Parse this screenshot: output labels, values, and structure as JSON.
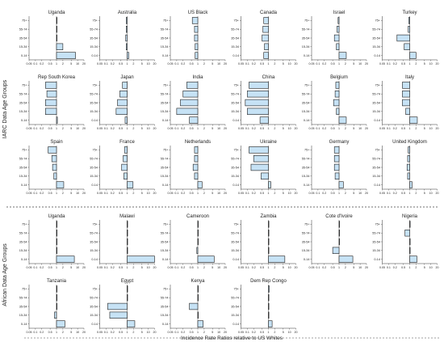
{
  "figure": {
    "group_labels": [
      "IARC Data Age Groups",
      "African Data Age Groups"
    ],
    "x_axis_label": "Incidence Rate Ratios relative to US Whites"
  },
  "chart_data": [
    {
      "type": "bar",
      "title": "Uganda",
      "group": "IARC",
      "categories": [
        "75+",
        "55-74",
        "35-54",
        "15-34",
        "0-14"
      ],
      "values": [
        1,
        1,
        1,
        2,
        8
      ],
      "xscale": "log",
      "xticks": [
        0.05,
        0.1,
        0.2,
        0.5,
        1,
        2,
        5,
        10,
        20
      ],
      "xlim": [
        0.05,
        20
      ]
    },
    {
      "type": "bar",
      "title": "Australia",
      "group": "IARC",
      "categories": [
        "75+",
        "55-74",
        "35-54",
        "15-34",
        "0-14"
      ],
      "values": [
        0.9,
        0.9,
        0.85,
        0.9,
        1.2
      ],
      "xscale": "log",
      "xticks": [
        0.05,
        0.1,
        0.2,
        0.5,
        1,
        2,
        5,
        10,
        20
      ],
      "xlim": [
        0.05,
        20
      ]
    },
    {
      "type": "bar",
      "title": "US Black",
      "group": "IARC",
      "categories": [
        "75+",
        "55-74",
        "35-54",
        "15-34",
        "0-14"
      ],
      "values": [
        0.55,
        0.7,
        0.7,
        0.75,
        0.75
      ],
      "xscale": "log",
      "xticks": [
        0.05,
        0.1,
        0.2,
        0.5,
        1,
        2,
        5,
        10,
        20
      ],
      "xlim": [
        0.05,
        20
      ]
    },
    {
      "type": "bar",
      "title": "Canada",
      "group": "IARC",
      "categories": [
        "75+",
        "55-74",
        "35-54",
        "15-34",
        "0-14"
      ],
      "values": [
        0.6,
        0.55,
        0.5,
        0.65,
        0.6
      ],
      "xscale": "log",
      "xticks": [
        0.05,
        0.1,
        0.2,
        0.5,
        1,
        2,
        5,
        10,
        20
      ],
      "xlim": [
        0.05,
        20
      ]
    },
    {
      "type": "bar",
      "title": "Israel",
      "group": "IARC",
      "categories": [
        "75+",
        "55-74",
        "35-54",
        "15-34",
        "0-14"
      ],
      "values": [
        0.9,
        0.8,
        0.6,
        0.75,
        2.2
      ],
      "xscale": "log",
      "xticks": [
        0.05,
        0.1,
        0.2,
        0.5,
        1,
        2,
        5,
        10,
        20
      ],
      "xlim": [
        0.05,
        20
      ]
    },
    {
      "type": "bar",
      "title": "Turkey",
      "group": "IARC",
      "categories": [
        "75+",
        "55-74",
        "35-54",
        "15-34",
        "0-14"
      ],
      "values": [
        0.9,
        0.85,
        0.25,
        0.55,
        2
      ],
      "xscale": "log",
      "xticks": [
        0.05,
        0.1,
        0.2,
        0.5,
        1,
        2,
        5,
        10,
        20
      ],
      "xlim": [
        0.05,
        20
      ]
    },
    {
      "type": "bar",
      "title": "Rep South Korea",
      "group": "IARC",
      "categories": [
        "75+",
        "55-74",
        "35-54",
        "15-34",
        "0-14"
      ],
      "values": [
        0.3,
        0.35,
        0.3,
        0.3,
        1.1
      ],
      "xscale": "log",
      "xticks": [
        0.05,
        0.1,
        0.2,
        0.5,
        1,
        2,
        5,
        10,
        20
      ],
      "xlim": [
        0.05,
        20
      ]
    },
    {
      "type": "bar",
      "title": "Japan",
      "group": "IARC",
      "categories": [
        "75+",
        "55-74",
        "35-54",
        "15-34",
        "0-14"
      ],
      "values": [
        0.6,
        0.45,
        0.35,
        0.3,
        0.8
      ],
      "xscale": "log",
      "xticks": [
        0.05,
        0.1,
        0.2,
        0.5,
        1,
        2,
        5,
        10,
        20
      ],
      "xlim": [
        0.05,
        20
      ]
    },
    {
      "type": "bar",
      "title": "India",
      "group": "IARC",
      "categories": [
        "75+",
        "55-74",
        "35-54",
        "15-34",
        "0-14"
      ],
      "values": [
        0.3,
        0.2,
        0.15,
        0.1,
        0.4
      ],
      "xscale": "log",
      "xticks": [
        0.05,
        0.1,
        0.2,
        0.5,
        1,
        2,
        5,
        10,
        20
      ],
      "xlim": [
        0.05,
        20
      ]
    },
    {
      "type": "bar",
      "title": "China",
      "group": "IARC",
      "categories": [
        "75+",
        "55-74",
        "35-54",
        "15-34",
        "0-14"
      ],
      "values": [
        0.12,
        0.1,
        0.08,
        0.1,
        0.4
      ],
      "xscale": "log",
      "xticks": [
        0.05,
        0.1,
        0.2,
        0.5,
        1,
        2,
        5,
        10,
        20
      ],
      "xlim": [
        0.05,
        20
      ]
    },
    {
      "type": "bar",
      "title": "Belgium",
      "group": "IARC",
      "categories": [
        "75+",
        "55-74",
        "35-54",
        "15-34",
        "0-14"
      ],
      "values": [
        0.7,
        0.65,
        0.55,
        0.75,
        2.2
      ],
      "xscale": "log",
      "xticks": [
        0.05,
        0.1,
        0.2,
        0.5,
        1,
        2,
        5,
        10,
        20
      ],
      "xlim": [
        0.05,
        20
      ]
    },
    {
      "type": "bar",
      "title": "Italy",
      "group": "IARC",
      "categories": [
        "75+",
        "55-74",
        "35-54",
        "15-34",
        "0-14"
      ],
      "values": [
        0.45,
        0.45,
        0.45,
        0.65,
        2.3
      ],
      "xscale": "log",
      "xticks": [
        0.05,
        0.1,
        0.2,
        0.5,
        1,
        2,
        5,
        10,
        20
      ],
      "xlim": [
        0.05,
        20
      ]
    },
    {
      "type": "bar",
      "title": "Spain",
      "group": "IARC",
      "categories": [
        "75+",
        "55-74",
        "35-54",
        "15-34",
        "0-14"
      ],
      "values": [
        0.4,
        0.6,
        0.65,
        0.75,
        2.2
      ],
      "xscale": "log",
      "xticks": [
        0.05,
        0.1,
        0.2,
        0.5,
        1,
        2,
        5,
        10,
        20
      ],
      "xlim": [
        0.05,
        20
      ]
    },
    {
      "type": "bar",
      "title": "France",
      "group": "IARC",
      "categories": [
        "75+",
        "55-74",
        "35-54",
        "15-34",
        "0-14"
      ],
      "values": [
        0.75,
        0.65,
        0.55,
        0.7,
        1.9
      ],
      "xscale": "log",
      "xticks": [
        0.05,
        0.1,
        0.2,
        0.5,
        1,
        2,
        5,
        10,
        20
      ],
      "xlim": [
        0.05,
        20
      ]
    },
    {
      "type": "bar",
      "title": "Netherlands",
      "group": "IARC",
      "categories": [
        "75+",
        "55-74",
        "35-54",
        "15-34",
        "0-14"
      ],
      "values": [
        0.7,
        0.7,
        0.6,
        0.7,
        1.6
      ],
      "xscale": "log",
      "xticks": [
        0.05,
        0.1,
        0.2,
        0.5,
        1,
        2,
        5,
        10,
        20
      ],
      "xlim": [
        0.05,
        20
      ]
    },
    {
      "type": "bar",
      "title": "Ukraine",
      "group": "IARC",
      "categories": [
        "75+",
        "55-74",
        "35-54",
        "15-34",
        "0-14"
      ],
      "values": [
        0.12,
        0.2,
        0.15,
        0.45,
        1.3
      ],
      "xscale": "log",
      "xticks": [
        0.05,
        0.1,
        0.2,
        0.5,
        1,
        2,
        5,
        10,
        20
      ],
      "xlim": [
        0.05,
        20
      ]
    },
    {
      "type": "bar",
      "title": "Germany",
      "group": "IARC",
      "categories": [
        "75+",
        "55-74",
        "35-54",
        "15-34",
        "0-14"
      ],
      "values": [
        0.6,
        0.6,
        0.6,
        0.65,
        1.6
      ],
      "xscale": "log",
      "xticks": [
        0.05,
        0.1,
        0.2,
        0.5,
        1,
        2,
        5,
        10,
        20
      ],
      "xlim": [
        0.05,
        20
      ]
    },
    {
      "type": "bar",
      "title": "United Kingdom",
      "group": "IARC",
      "categories": [
        "75+",
        "55-74",
        "35-54",
        "15-34",
        "0-14"
      ],
      "values": [
        0.85,
        0.8,
        0.75,
        0.8,
        1.3
      ],
      "xscale": "log",
      "xticks": [
        0.05,
        0.1,
        0.2,
        0.5,
        1,
        2,
        5,
        10,
        20
      ],
      "xlim": [
        0.05,
        20
      ]
    },
    {
      "type": "bar",
      "title": "Uganda",
      "group": "African",
      "categories": [
        "75+",
        "55-74",
        "35-54",
        "15-34",
        "0-14"
      ],
      "values": [
        1,
        1,
        1,
        1,
        7
      ],
      "xscale": "log",
      "xticks": [
        0.05,
        0.1,
        0.2,
        0.5,
        1,
        2,
        5,
        10,
        20
      ],
      "xlim": [
        0.05,
        20
      ]
    },
    {
      "type": "bar",
      "title": "Malawi",
      "group": "African",
      "categories": [
        "75+",
        "55-74",
        "35-54",
        "15-34",
        "0-14"
      ],
      "values": [
        1,
        1,
        1,
        1,
        20
      ],
      "xscale": "log",
      "xticks": [
        0.05,
        0.1,
        0.2,
        0.5,
        1,
        2,
        5,
        10,
        20
      ],
      "xlim": [
        0.05,
        20
      ]
    },
    {
      "type": "bar",
      "title": "Cameroon",
      "group": "African",
      "categories": [
        "75+",
        "55-74",
        "35-54",
        "15-34",
        "0-14"
      ],
      "values": [
        1,
        1,
        1,
        0.9,
        6
      ],
      "xscale": "log",
      "xticks": [
        0.05,
        0.1,
        0.2,
        0.5,
        1,
        2,
        5,
        10,
        20
      ],
      "xlim": [
        0.05,
        20
      ]
    },
    {
      "type": "bar",
      "title": "Zambia",
      "group": "African",
      "categories": [
        "75+",
        "55-74",
        "35-54",
        "15-34",
        "0-14"
      ],
      "values": [
        1,
        1,
        1,
        1,
        6
      ],
      "xscale": "log",
      "xticks": [
        0.05,
        0.1,
        0.2,
        0.5,
        1,
        2,
        5,
        10,
        20
      ],
      "xlim": [
        0.05,
        20
      ]
    },
    {
      "type": "bar",
      "title": "Cote d'Ivoire",
      "group": "African",
      "categories": [
        "75+",
        "55-74",
        "35-54",
        "15-34",
        "0-14"
      ],
      "values": [
        1,
        1,
        1,
        0.5,
        4.5
      ],
      "xscale": "log",
      "xticks": [
        0.05,
        0.1,
        0.2,
        0.5,
        1,
        2,
        5,
        10,
        20
      ],
      "xlim": [
        0.05,
        20
      ]
    },
    {
      "type": "bar",
      "title": "Nigeria",
      "group": "African",
      "categories": [
        "75+",
        "55-74",
        "35-54",
        "15-34",
        "0-14"
      ],
      "values": [
        1,
        0.6,
        1,
        1,
        2.2
      ],
      "xscale": "log",
      "xticks": [
        0.05,
        0.1,
        0.2,
        0.5,
        1,
        2,
        5,
        10,
        20
      ],
      "xlim": [
        0.05,
        20
      ]
    },
    {
      "type": "bar",
      "title": "Tanzania",
      "group": "African",
      "categories": [
        "75+",
        "55-74",
        "35-54",
        "15-34",
        "0-14"
      ],
      "values": [
        1,
        1,
        1,
        0.8,
        2.5
      ],
      "xscale": "log",
      "xticks": [
        0.05,
        0.1,
        0.2,
        0.5,
        1,
        2,
        5,
        10,
        20
      ],
      "xlim": [
        0.05,
        20
      ]
    },
    {
      "type": "bar",
      "title": "Egypt",
      "group": "African",
      "categories": [
        "75+",
        "55-74",
        "35-54",
        "15-34",
        "0-14"
      ],
      "values": [
        1,
        1,
        0.12,
        0.15,
        2.3
      ],
      "xscale": "log",
      "xticks": [
        0.05,
        0.1,
        0.2,
        0.5,
        1,
        2,
        5,
        10,
        20
      ],
      "xlim": [
        0.05,
        20
      ]
    },
    {
      "type": "bar",
      "title": "Kenya",
      "group": "African",
      "categories": [
        "75+",
        "55-74",
        "35-54",
        "15-34",
        "0-14"
      ],
      "values": [
        1,
        1,
        0.4,
        1,
        1.8
      ],
      "xscale": "log",
      "xticks": [
        0.05,
        0.1,
        0.2,
        0.5,
        1,
        2,
        5,
        10,
        20
      ],
      "xlim": [
        0.05,
        20
      ]
    },
    {
      "type": "bar",
      "title": "Dem Rep Congo",
      "group": "African",
      "categories": [
        "75+",
        "55-74",
        "35-54",
        "15-34",
        "0-14"
      ],
      "values": [
        1.1,
        1.05,
        1,
        1,
        1.5
      ],
      "xscale": "log",
      "xticks": [
        0.05,
        0.1,
        0.2,
        0.5,
        1,
        2,
        5,
        10,
        20
      ],
      "xlim": [
        0.05,
        20
      ]
    }
  ]
}
